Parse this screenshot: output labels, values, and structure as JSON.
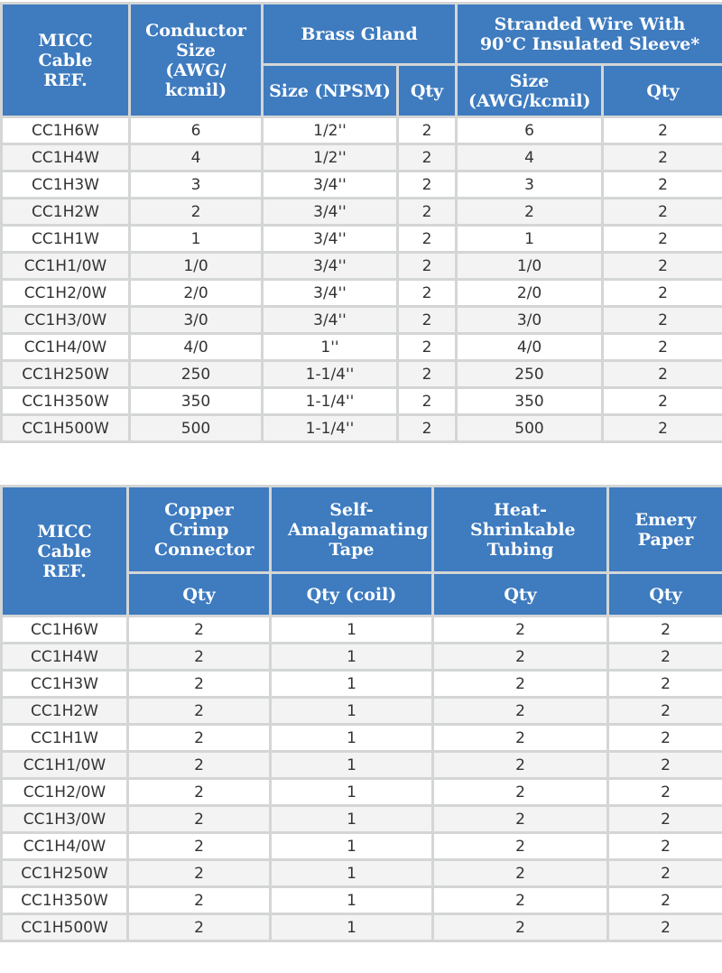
{
  "colors": {
    "header_bg": "#3e7bbf",
    "border": "#d4d6d6",
    "alt_row": "#f2f3f2"
  },
  "table1": {
    "headers": {
      "ref": "MICC Cable REF.",
      "conductor": "Conductor Size (AWG/ kcmil)",
      "gland": "Brass Gland",
      "gland_size": "Size (NPSM)",
      "gland_qty": "Qty",
      "wire": "Stranded Wire With 90°C Insulated Sleeve*",
      "wire_size": "Size (AWG/kcmil)",
      "wire_qty": "Qty"
    },
    "rows": [
      [
        "CC1H6W",
        "6",
        "1/2''",
        "2",
        "6",
        "2"
      ],
      [
        "CC1H4W",
        "4",
        "1/2''",
        "2",
        "4",
        "2"
      ],
      [
        "CC1H3W",
        "3",
        "3/4''",
        "2",
        "3",
        "2"
      ],
      [
        "CC1H2W",
        "2",
        "3/4''",
        "2",
        "2",
        "2"
      ],
      [
        "CC1H1W",
        "1",
        "3/4''",
        "2",
        "1",
        "2"
      ],
      [
        "CC1H1/0W",
        "1/0",
        "3/4''",
        "2",
        "1/0",
        "2"
      ],
      [
        "CC1H2/0W",
        "2/0",
        "3/4''",
        "2",
        "2/0",
        "2"
      ],
      [
        "CC1H3/0W",
        "3/0",
        "3/4''",
        "2",
        "3/0",
        "2"
      ],
      [
        "CC1H4/0W",
        "4/0",
        "1''",
        "2",
        "4/0",
        "2"
      ],
      [
        "CC1H250W",
        "250",
        "1-1/4''",
        "2",
        "250",
        "2"
      ],
      [
        "CC1H350W",
        "350",
        "1-1/4''",
        "2",
        "350",
        "2"
      ],
      [
        "CC1H500W",
        "500",
        "1-1/4''",
        "2",
        "500",
        "2"
      ]
    ]
  },
  "table2": {
    "headers": {
      "ref": "MICC Cable REF.",
      "crimp": "Copper Crimp Connector",
      "tape": "Self- Amalgamating Tape",
      "tubing": "Heat- Shrinkable Tubing",
      "emery": "Emery Paper",
      "crimp_qty": "Qty",
      "tape_qty": "Qty (coil)",
      "tubing_qty": "Qty",
      "emery_qty": "Qty"
    },
    "rows": [
      [
        "CC1H6W",
        "2",
        "1",
        "2",
        "2"
      ],
      [
        "CC1H4W",
        "2",
        "1",
        "2",
        "2"
      ],
      [
        "CC1H3W",
        "2",
        "1",
        "2",
        "2"
      ],
      [
        "CC1H2W",
        "2",
        "1",
        "2",
        "2"
      ],
      [
        "CC1H1W",
        "2",
        "1",
        "2",
        "2"
      ],
      [
        "CC1H1/0W",
        "2",
        "1",
        "2",
        "2"
      ],
      [
        "CC1H2/0W",
        "2",
        "1",
        "2",
        "2"
      ],
      [
        "CC1H3/0W",
        "2",
        "1",
        "2",
        "2"
      ],
      [
        "CC1H4/0W",
        "2",
        "1",
        "2",
        "2"
      ],
      [
        "CC1H250W",
        "2",
        "1",
        "2",
        "2"
      ],
      [
        "CC1H350W",
        "2",
        "1",
        "2",
        "2"
      ],
      [
        "CC1H500W",
        "2",
        "1",
        "2",
        "2"
      ]
    ]
  }
}
